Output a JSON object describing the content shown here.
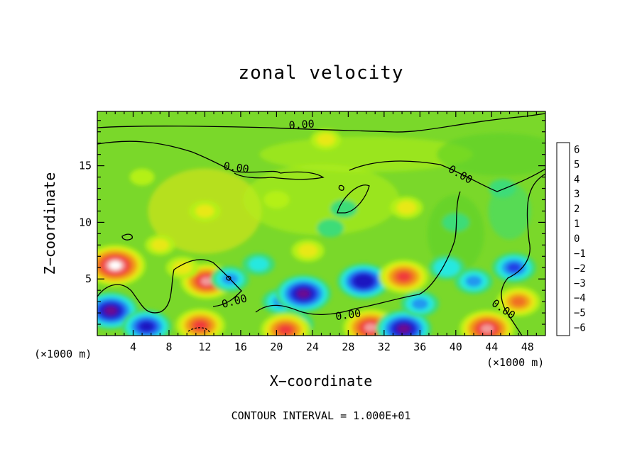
{
  "chart_data": {
    "type": "heatmap",
    "title": "zonal velocity",
    "xlabel": "X−coordinate",
    "ylabel": "Z−coordinate",
    "x_unit_note_left": "(×1000 m)",
    "x_unit_note_right": "(×1000 m)",
    "footnote": "CONTOUR INTERVAL = 1.000E+01",
    "xlim": [
      0,
      50
    ],
    "ylim": [
      0,
      19.8
    ],
    "x_ticks": [
      4,
      8,
      12,
      16,
      20,
      24,
      28,
      32,
      36,
      40,
      44,
      48
    ],
    "y_ticks": [
      5,
      10,
      15
    ],
    "colorbar": {
      "levels": [
        6,
        5,
        4,
        3,
        2,
        1,
        0,
        -1,
        -2,
        -3,
        -4,
        -5,
        -6
      ],
      "colors": [
        "#f29a9a",
        "#f03a3a",
        "#f07020",
        "#f0a818",
        "#e8e818",
        "#b4f018",
        "#5ad028",
        "#3cdc78",
        "#28e8e0",
        "#2498f0",
        "#2440e6",
        "#1c14c0",
        "#6a1090"
      ]
    },
    "contour_labels": [
      "0.00",
      "0.00",
      "0.00",
      "0.00",
      "0.00",
      "0.00"
    ],
    "features": [
      {
        "x": 2,
        "z": 6.2,
        "value": 7
      },
      {
        "x": 1.5,
        "z": 2.2,
        "value": -6
      },
      {
        "x": 5.5,
        "z": 0.8,
        "value": -5
      },
      {
        "x": 12.2,
        "z": 4.8,
        "value": 5.5
      },
      {
        "x": 9.5,
        "z": 6.0,
        "value": 2
      },
      {
        "x": 11.5,
        "z": 0.9,
        "value": 5
      },
      {
        "x": 14.8,
        "z": 5.0,
        "value": -3
      },
      {
        "x": 20.5,
        "z": 3.0,
        "value": -3
      },
      {
        "x": 23,
        "z": 3.7,
        "value": -6
      },
      {
        "x": 22,
        "z": 1.0,
        "value": -3
      },
      {
        "x": 21,
        "z": 0.5,
        "value": 5
      },
      {
        "x": 23.5,
        "z": 7.5,
        "value": 2
      },
      {
        "x": 29.7,
        "z": 4.8,
        "value": -5.5
      },
      {
        "x": 30.5,
        "z": 0.7,
        "value": 6
      },
      {
        "x": 34.2,
        "z": 5.2,
        "value": 5
      },
      {
        "x": 34.2,
        "z": 0.6,
        "value": -6
      },
      {
        "x": 36,
        "z": 2.8,
        "value": -3
      },
      {
        "x": 39,
        "z": 6.0,
        "value": -2.5
      },
      {
        "x": 42,
        "z": 4.8,
        "value": -3
      },
      {
        "x": 46.5,
        "z": 6.0,
        "value": -4
      },
      {
        "x": 43.5,
        "z": 0.6,
        "value": 6
      },
      {
        "x": 47,
        "z": 3.0,
        "value": 4
      },
      {
        "x": 18,
        "z": 6.3,
        "value": -2
      },
      {
        "x": 26,
        "z": 9.5,
        "value": -1
      },
      {
        "x": 27.5,
        "z": 11.2,
        "value": -1
      },
      {
        "x": 34.5,
        "z": 11.3,
        "value": 2
      },
      {
        "x": 12,
        "z": 11,
        "value": 1.8
      },
      {
        "x": 25.5,
        "z": 17.3,
        "value": 1.6
      },
      {
        "x": 7,
        "z": 8,
        "value": 1.5
      },
      {
        "x": 45.2,
        "z": 13,
        "value": -1
      },
      {
        "x": 40,
        "z": 10,
        "value": -1
      },
      {
        "x": 5,
        "z": 14,
        "value": 0.6
      },
      {
        "x": 20,
        "z": 12,
        "value": 0.8
      }
    ]
  }
}
